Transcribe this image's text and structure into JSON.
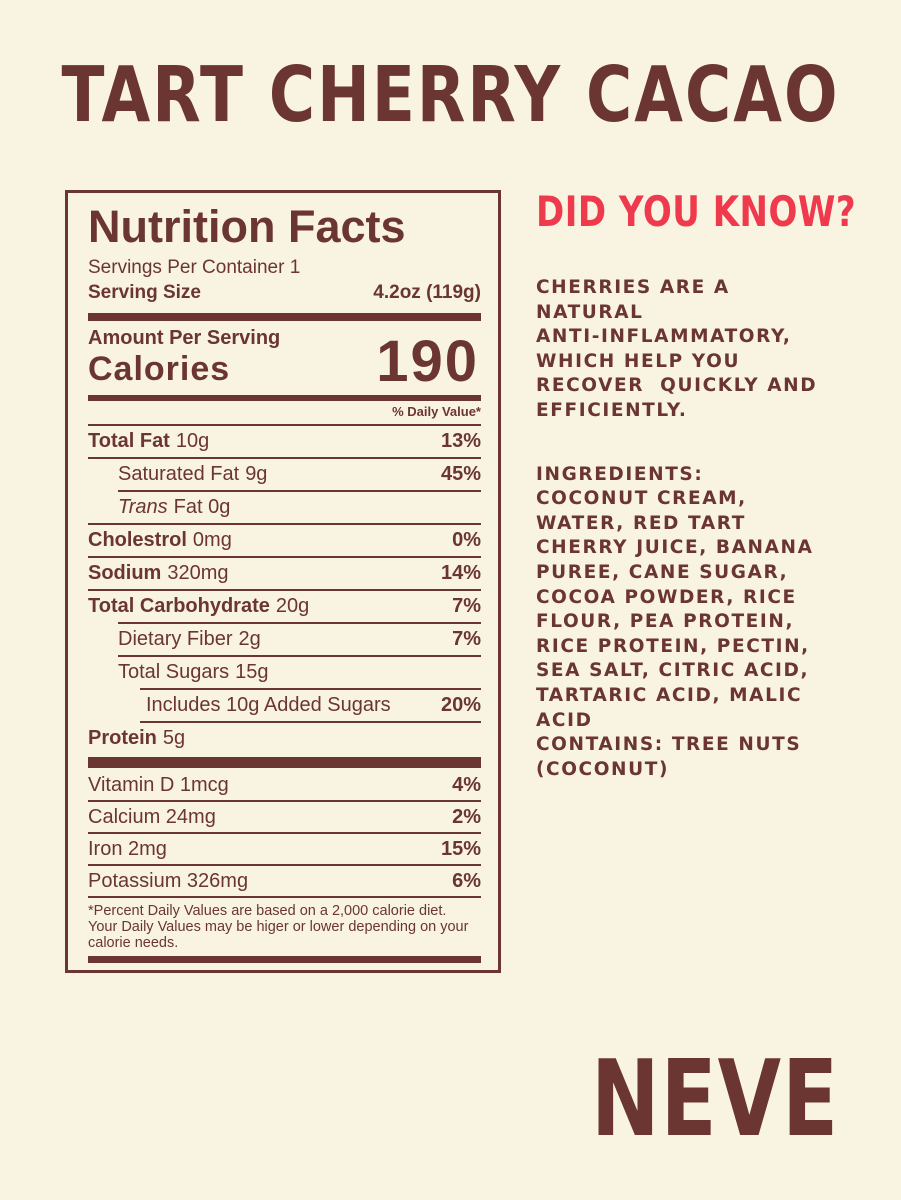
{
  "colors": {
    "background": "#f9f4e2",
    "maroon": "#6b3531",
    "red": "#ee3a4c"
  },
  "page": {
    "title": "TART CHERRY CACAO",
    "brand": "NEVE"
  },
  "nutrition_label": {
    "title": "Nutrition Facts",
    "servings_per_container": "Servings Per Container 1",
    "serving_size_label": "Serving Size",
    "serving_size_value": "4.2oz (119g)",
    "amount_per_serving": "Amount Per Serving",
    "calories_label": "Calories",
    "calories_value": "190",
    "daily_value_header": "% Daily Value*",
    "rows": [
      {
        "name": "Total Fat",
        "amount": "10g",
        "dv": "13%"
      },
      {
        "name": "Saturated Fat",
        "amount": "9g",
        "dv": "45%"
      },
      {
        "name": "Trans",
        "amount": "Fat 0g",
        "dv": ""
      },
      {
        "name": "Cholestrol",
        "amount": "0mg",
        "dv": "0%"
      },
      {
        "name": "Sodium",
        "amount": "320mg",
        "dv": "14%"
      },
      {
        "name": "Total Carbohydrate",
        "amount": "20g",
        "dv": "7%"
      },
      {
        "name": "Dietary Fiber",
        "amount": "2g",
        "dv": "7%"
      },
      {
        "name": "Total Sugars",
        "amount": "15g",
        "dv": ""
      },
      {
        "name": "Includes 10g Added Sugars",
        "amount": "",
        "dv": "20%"
      },
      {
        "name": "Protein",
        "amount": "5g",
        "dv": ""
      }
    ],
    "micronutrients": [
      {
        "name": "Vitamin D 1mcg",
        "dv": "4%"
      },
      {
        "name": "Calcium 24mg",
        "dv": "2%"
      },
      {
        "name": "Iron 2mg",
        "dv": "15%"
      },
      {
        "name": "Potassium 326mg",
        "dv": "6%"
      }
    ],
    "footnote": "*Percent Daily Values are based on a 2,000 calorie diet.\nYour Daily Values may be higer or lower depending on your\ncalorie needs."
  },
  "did_you_know": {
    "heading": "DID YOU KNOW?",
    "body": "CHERRIES ARE A\nNATURAL\nANTI-INFLAMMATORY,\nWHICH HELP YOU\nRECOVER  QUICKLY AND\nEFFICIENTLY."
  },
  "ingredients": {
    "text": "INGREDIENTS:\nCOCONUT CREAM,\nWATER, RED TART\nCHERRY JUICE, BANANA\nPUREE, CANE SUGAR,\nCOCOA POWDER, RICE\nFLOUR, PEA PROTEIN,\nRICE PROTEIN, PECTIN,\nSEA SALT, CITRIC ACID,\nTARTARIC ACID, MALIC\nACID\nCONTAINS: TREE NUTS\n(COCONUT)"
  }
}
